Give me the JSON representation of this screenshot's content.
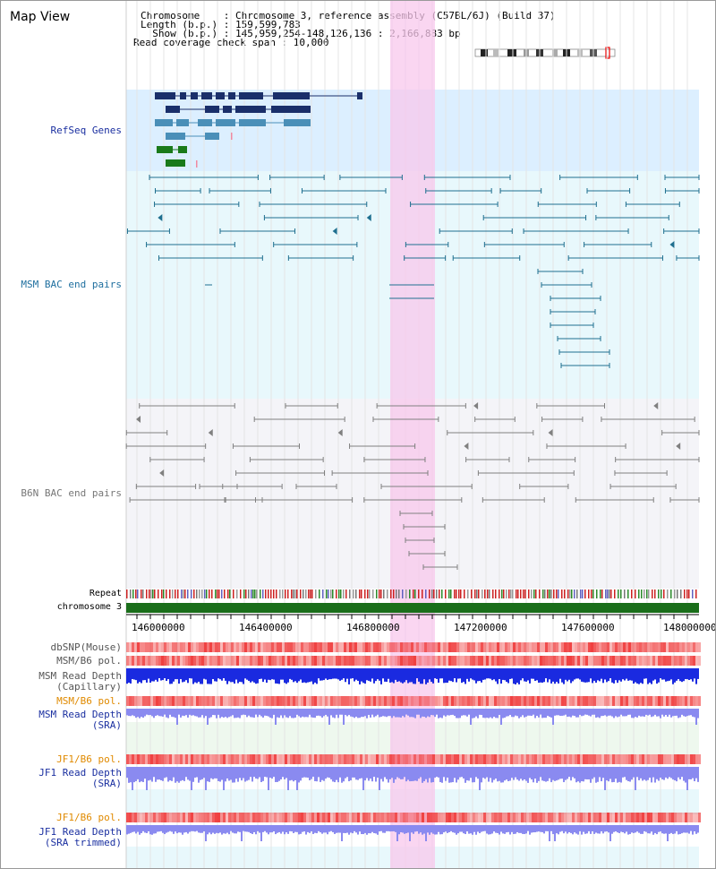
{
  "header": {
    "title": "Map View",
    "chromosome_line": "Chromosome    : Chromosome 3, reference assembly (C57BL/6J) (Build 37)",
    "length_line": "Length (b.p.) : 159,599,783",
    "show_line": "  Show (b.p.) : 145,959,254-148,126,136 : 2,166,883 bp",
    "coverage_line": "Read coverage check span : 10,000"
  },
  "tracks": {
    "refseq": "RefSeq Genes",
    "msm_bac": "MSM BAC end pairs",
    "b6n_bac": "B6N BAC end pairs",
    "repeat": "Repeat",
    "chromosome": "chromosome 3",
    "dbsnp": "dbSNP(Mouse)",
    "msm_b6_pol_1": "MSM/B6 pol.",
    "msm_read_depth_cap_1": "MSM Read Depth",
    "msm_read_depth_cap_2": "(Capillary)",
    "msm_b6_pol_2": "MSM/B6 pol.",
    "msm_read_depth_sra_1": "MSM Read Depth",
    "msm_read_depth_sra_2": "(SRA)",
    "jf1_b6_pol_1": "JF1/B6 pol.",
    "jf1_read_depth_sra_1": "JF1 Read Depth",
    "jf1_read_depth_sra_2": "(SRA)",
    "jf1_b6_pol_2": "JF1/B6 pol.",
    "jf1_read_depth_trim_1": "JF1 Read Depth",
    "jf1_read_depth_trim_2": "(SRA trimmed)"
  },
  "axis": {
    "ticks": [
      "146000000",
      "146400000",
      "146800000",
      "147200000",
      "147600000",
      "148000000"
    ]
  },
  "colors": {
    "highlight": "#f8d8f0",
    "refseq_bg": "#dcefff",
    "msm_bg": "#e8f8fc",
    "b6n_bg": "#f4f4f8",
    "gene_navy": "#1a2f6a",
    "gene_teal": "#4a8fb8",
    "gene_green": "#1a7a1a",
    "msm_line": "#1f6f8f",
    "b6n_line": "#808080",
    "chrom_band": "#1a6e1a",
    "label_navy": "#1a2fa0",
    "label_teal": "#1f6f9f",
    "label_orange": "#e08a00",
    "label_gray": "#555555"
  }
}
